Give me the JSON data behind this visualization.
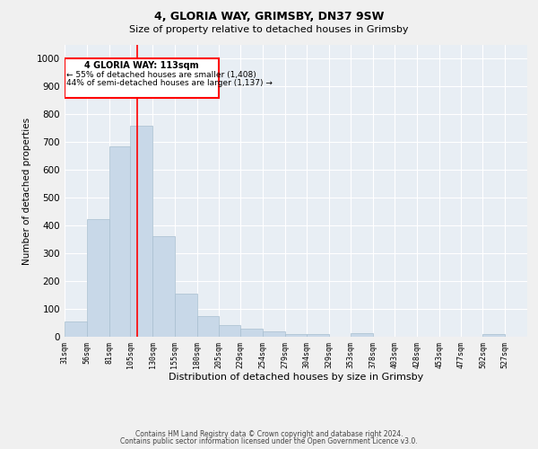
{
  "title1": "4, GLORIA WAY, GRIMSBY, DN37 9SW",
  "title2": "Size of property relative to detached houses in Grimsby",
  "xlabel": "Distribution of detached houses by size in Grimsby",
  "ylabel": "Number of detached properties",
  "footer1": "Contains HM Land Registry data © Crown copyright and database right 2024.",
  "footer2": "Contains public sector information licensed under the Open Government Licence v3.0.",
  "annotation_line1": "4 GLORIA WAY: 113sqm",
  "annotation_line2": "← 55% of detached houses are smaller (1,408)",
  "annotation_line3": "44% of semi-detached houses are larger (1,137) →",
  "property_size": 113,
  "bar_color": "#c8d8e8",
  "bar_edge_color": "#a8bfd0",
  "vline_color": "red",
  "background_color": "#e8eef4",
  "fig_background_color": "#f0f0f0",
  "grid_color": "#ffffff",
  "categories": [
    "31sqm",
    "56sqm",
    "81sqm",
    "105sqm",
    "130sqm",
    "155sqm",
    "180sqm",
    "205sqm",
    "229sqm",
    "254sqm",
    "279sqm",
    "304sqm",
    "329sqm",
    "353sqm",
    "378sqm",
    "403sqm",
    "428sqm",
    "453sqm",
    "477sqm",
    "502sqm",
    "527sqm"
  ],
  "values": [
    55,
    422,
    685,
    760,
    362,
    155,
    75,
    43,
    28,
    18,
    10,
    10,
    0,
    12,
    0,
    0,
    0,
    0,
    0,
    10,
    0
  ],
  "bin_edges": [
    31,
    56,
    81,
    105,
    130,
    155,
    180,
    205,
    229,
    254,
    279,
    304,
    329,
    353,
    378,
    403,
    428,
    453,
    477,
    502,
    527,
    552
  ],
  "ylim": [
    0,
    1050
  ],
  "yticks": [
    0,
    100,
    200,
    300,
    400,
    500,
    600,
    700,
    800,
    900,
    1000
  ],
  "title1_fontsize": 9,
  "title2_fontsize": 8,
  "ylabel_fontsize": 7.5,
  "xlabel_fontsize": 8,
  "ytick_fontsize": 7.5,
  "xtick_fontsize": 6,
  "footer_fontsize": 5.5,
  "annot_fontsize1": 7,
  "annot_fontsize2": 6.5
}
